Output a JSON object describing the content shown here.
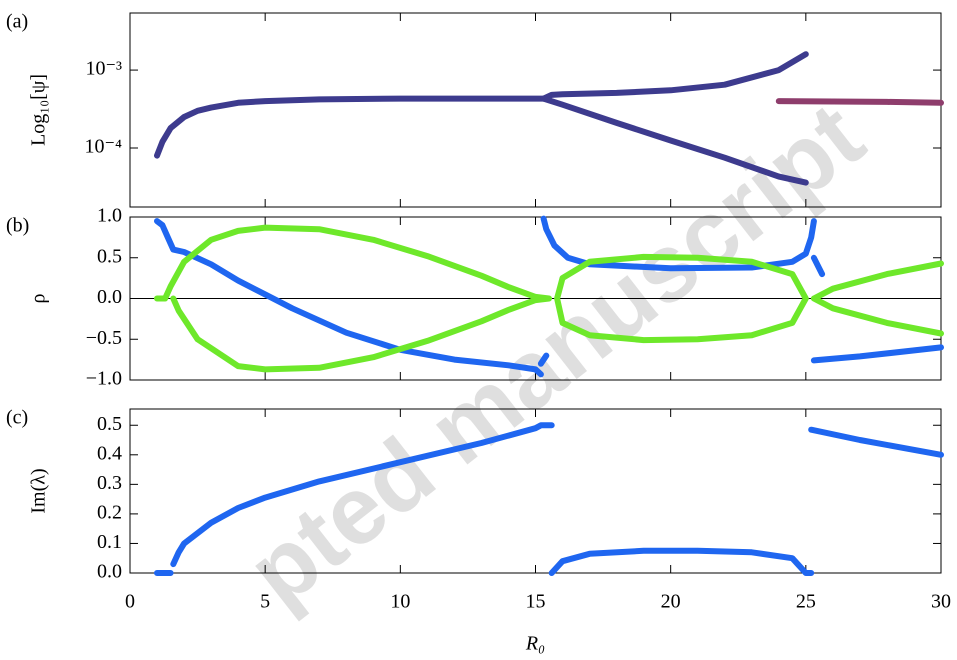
{
  "chart_data": [
    {
      "type": "line",
      "panel_label": "(a)",
      "ylabel": "Log₁₀[ψ]",
      "yscale": "log",
      "xlim": [
        0,
        30
      ],
      "xticks": [
        0,
        5,
        10,
        15,
        20,
        25,
        30
      ],
      "ylim": [
        1.75e-05,
        0.0054
      ],
      "yticks": [
        {
          "value": 0.0001,
          "label": "10⁻⁴"
        },
        {
          "value": 0.001,
          "label": "10⁻³"
        }
      ],
      "series": [
        {
          "color": "#3d3b8e",
          "x": [
            1,
            1.2,
            1.5,
            2,
            2.5,
            3,
            4,
            5,
            7,
            10,
            13,
            15,
            15.3,
            15.6,
            16,
            18,
            20,
            22,
            24,
            25
          ],
          "values": [
            8e-05,
            0.00012,
            0.00018,
            0.00025,
            0.0003,
            0.00033,
            0.00038,
            0.0004,
            0.00042,
            0.00043,
            0.00043,
            0.00043,
            0.00043,
            0.00048,
            0.00049,
            0.00051,
            0.00055,
            0.00065,
            0.001,
            0.0016
          ]
        },
        {
          "color": "#3d3b8e",
          "x": [
            15.3,
            16,
            18,
            20,
            22,
            24,
            25
          ],
          "values": [
            0.00043,
            0.00036,
            0.00021,
            0.000125,
            7.5e-05,
            4.3e-05,
            3.6e-05
          ]
        },
        {
          "color": "#8e3d6c",
          "x": [
            24,
            26,
            28,
            30
          ],
          "values": [
            0.0004,
            0.000395,
            0.00039,
            0.00038
          ]
        }
      ]
    },
    {
      "type": "line",
      "panel_label": "(b)",
      "ylabel": "ρ",
      "xlim": [
        0,
        30
      ],
      "xticks": [
        0,
        5,
        10,
        15,
        20,
        25,
        30
      ],
      "ylim": [
        -1,
        1
      ],
      "hline": 0,
      "yticks": [
        {
          "value": -1,
          "label": "−1.0"
        },
        {
          "value": -0.5,
          "label": "−0.5"
        },
        {
          "value": 0,
          "label": "0.0"
        },
        0.5,
        {
          "value": 1,
          "label": "1.0"
        }
      ],
      "series": [
        {
          "color": "#1f66f0",
          "x": [
            1,
            1.2,
            1.4,
            1.6,
            2,
            3,
            4,
            5,
            6,
            8,
            10,
            12,
            14,
            15,
            15.2,
            null,
            15.2,
            15.4,
            null,
            15.3,
            15.4,
            15.7,
            16.2,
            17,
            20,
            23,
            24.5,
            25,
            25.2,
            25.3,
            null,
            25.3,
            25.6,
            null,
            25.3,
            27,
            30
          ],
          "values": [
            0.95,
            0.9,
            0.75,
            0.6,
            0.57,
            0.42,
            0.22,
            0.05,
            -0.12,
            -0.42,
            -0.63,
            -0.75,
            -0.82,
            -0.87,
            -0.93,
            null,
            -0.8,
            -0.7,
            null,
            0.98,
            0.85,
            0.65,
            0.5,
            0.42,
            0.37,
            0.38,
            0.45,
            0.55,
            0.75,
            0.95,
            null,
            0.5,
            0.3,
            null,
            -0.76,
            -0.71,
            -0.6
          ]
        },
        {
          "color": "#6ee82a",
          "x": [
            1,
            1.3,
            1.5,
            2,
            3,
            4,
            5,
            7,
            9,
            11,
            13,
            14,
            15,
            15.5,
            null,
            1.6,
            1.8,
            2.5,
            4,
            5,
            7,
            9,
            11,
            13,
            14,
            15,
            15.5,
            null,
            15.8,
            16,
            17,
            19,
            21,
            23,
            24.5,
            25,
            24.5,
            23,
            21,
            19,
            17,
            16,
            15.8,
            null,
            25.3,
            26,
            28,
            30,
            null,
            25.3,
            26,
            28,
            30
          ],
          "values": [
            0,
            0,
            0.15,
            0.45,
            0.72,
            0.83,
            0.87,
            0.85,
            0.72,
            0.52,
            0.28,
            0.14,
            0.02,
            0,
            null,
            0,
            -0.15,
            -0.5,
            -0.83,
            -0.87,
            -0.85,
            -0.72,
            -0.52,
            -0.28,
            -0.14,
            -0.02,
            0,
            null,
            0,
            0.25,
            0.45,
            0.51,
            0.5,
            0.45,
            0.3,
            0,
            -0.3,
            -0.45,
            -0.5,
            -0.51,
            -0.45,
            -0.3,
            0,
            null,
            0,
            0.12,
            0.3,
            0.43,
            null,
            0,
            -0.12,
            -0.3,
            -0.43
          ]
        }
      ]
    },
    {
      "type": "line",
      "panel_label": "(c)",
      "ylabel": "Im(λ)",
      "xlabel": "R₀",
      "show_xtick_labels": true,
      "xlim": [
        0,
        30
      ],
      "xticks": [
        0,
        5,
        10,
        15,
        20,
        25,
        30
      ],
      "ylim": [
        0,
        0.555
      ],
      "yticks": [
        {
          "value": 0,
          "label": "0.0"
        },
        0.1,
        0.2,
        0.3,
        0.4,
        0.5
      ],
      "series": [
        {
          "color": "#1f66f0",
          "x": [
            1,
            1.5,
            null,
            1.6,
            1.8,
            2,
            3,
            4,
            5,
            7,
            10,
            13,
            15,
            15.2,
            15.6,
            null,
            15.6,
            16,
            17,
            19,
            21,
            23,
            24.5,
            25,
            25.2,
            null,
            25.2,
            27,
            30
          ],
          "values": [
            0,
            0,
            null,
            0.03,
            0.07,
            0.1,
            0.17,
            0.22,
            0.255,
            0.31,
            0.375,
            0.44,
            0.49,
            0.5,
            0.5,
            null,
            0,
            0.04,
            0.065,
            0.075,
            0.075,
            0.07,
            0.05,
            0,
            0,
            null,
            0.485,
            0.45,
            0.4
          ]
        }
      ]
    }
  ],
  "watermark": "pted manuscript"
}
